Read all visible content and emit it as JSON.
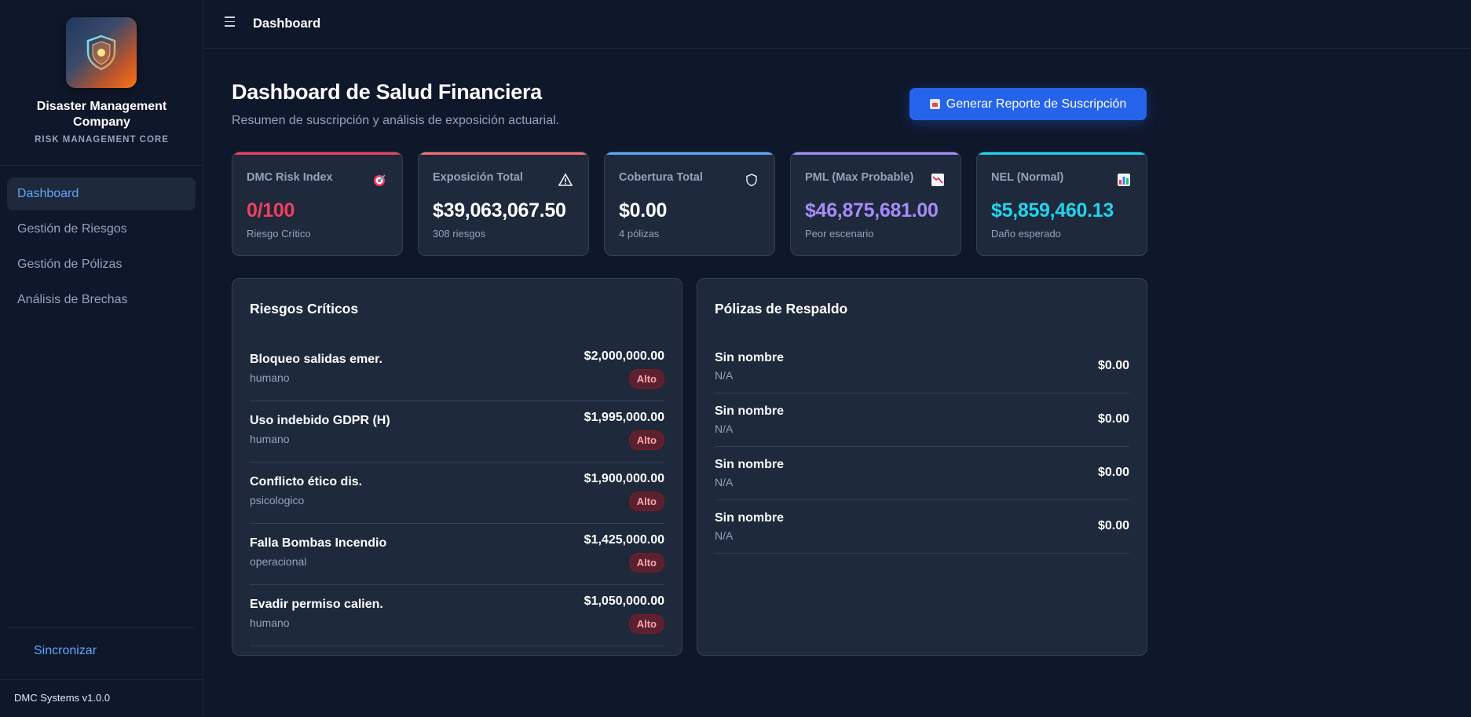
{
  "sidebar": {
    "company_name": "Disaster Management Company",
    "company_tagline": "RISK MANAGEMENT CORE",
    "nav": [
      {
        "label": "Dashboard",
        "active": true
      },
      {
        "label": "Gestión de Riesgos",
        "active": false
      },
      {
        "label": "Gestión de Pólizas",
        "active": false
      },
      {
        "label": "Análisis de Brechas",
        "active": false
      }
    ],
    "sync_label": "Sincronizar",
    "version": "DMC Systems v1.0.0"
  },
  "topbar": {
    "title": "Dashboard",
    "menu_icon": "hamburger-menu-icon"
  },
  "header": {
    "title": "Dashboard de Salud Financiera",
    "subtitle": "Resumen de suscripción y análisis de exposición actuarial.",
    "generate_button": "Generar Reporte de Suscripción"
  },
  "cards": [
    {
      "label": "DMC Risk Index",
      "value": "0/100",
      "sub": "Riesgo Crítico",
      "icon": "target-icon",
      "accent": "#f43f5e",
      "value_color": "#f43f5e"
    },
    {
      "label": "Exposición Total",
      "value": "$39,063,067.50",
      "sub": "308 riesgos",
      "icon": "warning-icon",
      "accent": "#f87171",
      "value_color": "#ffffff"
    },
    {
      "label": "Cobertura Total",
      "value": "$0.00",
      "sub": "4 pólizas",
      "icon": "shield-icon",
      "accent": "#60a5fa",
      "value_color": "#ffffff"
    },
    {
      "label": "PML (Max Probable)",
      "value": "$46,875,681.00",
      "sub": "Peor escenario",
      "icon": "chart-decreasing-icon",
      "accent": "#a78bfa",
      "value_color": "#a78bfa"
    },
    {
      "label": "NEL (Normal)",
      "value": "$5,859,460.13",
      "sub": "Daño esperado",
      "icon": "bar-chart-icon",
      "accent": "#22d3ee",
      "value_color": "#22d3ee"
    }
  ],
  "critical_risks": {
    "title": "Riesgos Críticos",
    "items": [
      {
        "name": "Bloqueo salidas emer.",
        "category": "humano",
        "amount": "$2,000,000.00",
        "level": "Alto"
      },
      {
        "name": "Uso indebido GDPR (H)",
        "category": "humano",
        "amount": "$1,995,000.00",
        "level": "Alto"
      },
      {
        "name": "Conflicto ético dis.",
        "category": "psicologico",
        "amount": "$1,900,000.00",
        "level": "Alto"
      },
      {
        "name": "Falla Bombas Incendio",
        "category": "operacional",
        "amount": "$1,425,000.00",
        "level": "Alto"
      },
      {
        "name": "Evadir permiso calien.",
        "category": "humano",
        "amount": "$1,050,000.00",
        "level": "Alto"
      }
    ]
  },
  "backup_policies": {
    "title": "Pólizas de Respaldo",
    "items": [
      {
        "name": "Sin nombre",
        "sub": "N/A",
        "amount": "$0.00"
      },
      {
        "name": "Sin nombre",
        "sub": "N/A",
        "amount": "$0.00"
      },
      {
        "name": "Sin nombre",
        "sub": "N/A",
        "amount": "$0.00"
      },
      {
        "name": "Sin nombre",
        "sub": "N/A",
        "amount": "$0.00"
      }
    ]
  }
}
